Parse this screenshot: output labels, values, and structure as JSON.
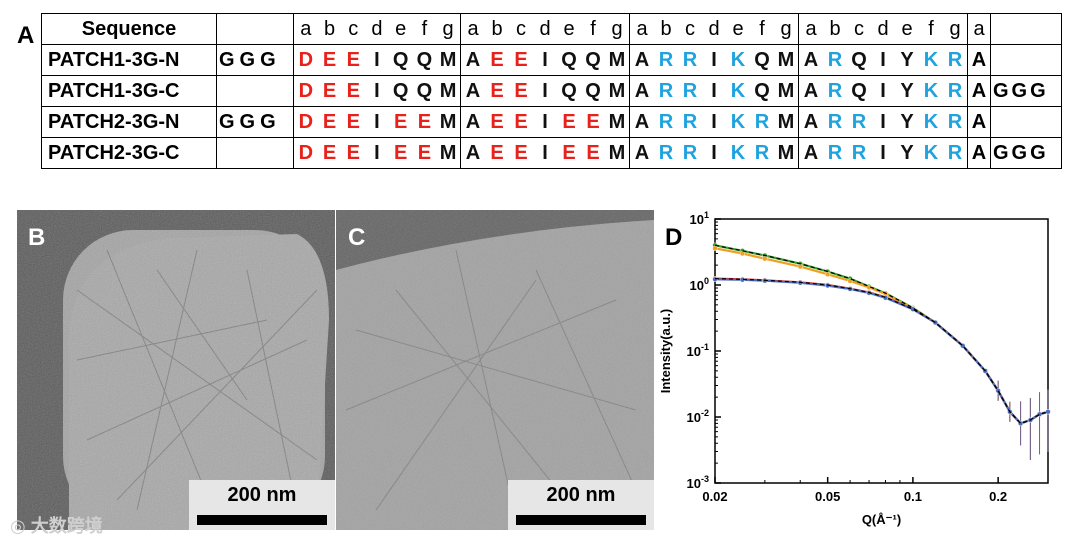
{
  "panel_labels": {
    "a": "A",
    "b": "B",
    "c": "C",
    "d": "D"
  },
  "table": {
    "header": {
      "name": "Sequence",
      "segments": [
        [
          "a",
          "b",
          "c",
          "d",
          "e",
          "f",
          "g"
        ],
        [
          "a",
          "b",
          "c",
          "d",
          "e",
          "f",
          "g"
        ],
        [
          "a",
          "b",
          "c",
          "d",
          "e",
          "f",
          "g"
        ],
        [
          "a",
          "b",
          "c",
          "d",
          "e",
          "f",
          "g"
        ],
        [
          "a"
        ],
        []
      ]
    },
    "rows": [
      {
        "name": "PATCH1-3G-N",
        "prefix": "GGG",
        "heptads": [
          "DEEIQQM",
          "AEEIQQM",
          "ARRIKQM",
          "ARQIYKR"
        ],
        "a_final": "A",
        "suffix": ""
      },
      {
        "name": "PATCH1-3G-C",
        "prefix": "",
        "heptads": [
          "DEEIQQM",
          "AEEIQQM",
          "ARRIKQM",
          "ARQIYKR"
        ],
        "a_final": "A",
        "suffix": "GGG"
      },
      {
        "name": "PATCH2-3G-N",
        "prefix": "GGG",
        "heptads": [
          "DEEIEEM",
          "AEEIEEM",
          "ARRIKRM",
          "ARRIYKR"
        ],
        "a_final": "A",
        "suffix": ""
      },
      {
        "name": "PATCH2-3G-C",
        "prefix": "",
        "heptads": [
          "DEEIEEM",
          "AEEIEEM",
          "ARRIKRM",
          "ARRIYKR"
        ],
        "a_final": "A",
        "suffix": "GGG"
      }
    ],
    "colors": {
      "acidic": "#e8211b",
      "basic": "#1fa3de",
      "neutral": "#111111"
    }
  },
  "micrographs": {
    "b": {
      "scale_label": "200 nm"
    },
    "c": {
      "scale_label": "200 nm"
    }
  },
  "chart_data": {
    "type": "scatter",
    "title": "",
    "xlabel": "Q(Å⁻¹)",
    "ylabel": "Intensity(a.u.)",
    "xscale": "log",
    "yscale": "log",
    "xlim": [
      0.02,
      0.3
    ],
    "ylim": [
      0.001,
      10
    ],
    "x_ticks": [
      {
        "value": 0.02,
        "label": "0.02"
      },
      {
        "value": 0.05,
        "label": "0.05"
      },
      {
        "value": 0.1,
        "label": "0.1"
      },
      {
        "value": 0.2,
        "label": "0.2"
      }
    ],
    "y_ticks": [
      {
        "value": 10,
        "base": "10",
        "exp": "1"
      },
      {
        "value": 1,
        "base": "10",
        "exp": "0"
      },
      {
        "value": 0.1,
        "base": "10",
        "exp": "-1"
      },
      {
        "value": 0.01,
        "base": "10",
        "exp": "-2"
      },
      {
        "value": 0.001,
        "base": "10",
        "exp": "-3"
      }
    ],
    "series": [
      {
        "name": "PATCH1-3G-N",
        "color": "#33a02c",
        "x": [
          0.02,
          0.025,
          0.03,
          0.04,
          0.05,
          0.06,
          0.07,
          0.08,
          0.1,
          0.12,
          0.15,
          0.18,
          0.2,
          0.22,
          0.24,
          0.26,
          0.28,
          0.3
        ],
        "y": [
          4.0,
          3.3,
          2.8,
          2.1,
          1.6,
          1.25,
          0.95,
          0.75,
          0.45,
          0.27,
          0.12,
          0.05,
          0.025,
          0.012,
          0.008,
          0.009,
          0.011,
          0.012
        ]
      },
      {
        "name": "PATCH1-3G-C",
        "color": "#f0a020",
        "x": [
          0.02,
          0.025,
          0.03,
          0.04,
          0.05,
          0.06,
          0.07,
          0.08,
          0.1,
          0.12,
          0.15,
          0.18,
          0.2,
          0.22,
          0.24,
          0.26,
          0.28,
          0.3
        ],
        "y": [
          3.6,
          3.0,
          2.5,
          1.9,
          1.45,
          1.15,
          0.92,
          0.73,
          0.44,
          0.27,
          0.12,
          0.05,
          0.025,
          0.012,
          0.008,
          0.009,
          0.011,
          0.012
        ]
      },
      {
        "name": "PATCH2-3G-N",
        "color": "#e8211b",
        "x": [
          0.02,
          0.025,
          0.03,
          0.04,
          0.05,
          0.06,
          0.07,
          0.08,
          0.1,
          0.12,
          0.15,
          0.18,
          0.2,
          0.22,
          0.24,
          0.26,
          0.28,
          0.3
        ],
        "y": [
          1.25,
          1.22,
          1.18,
          1.1,
          1.0,
          0.88,
          0.77,
          0.65,
          0.43,
          0.27,
          0.12,
          0.05,
          0.025,
          0.012,
          0.008,
          0.009,
          0.011,
          0.012
        ]
      },
      {
        "name": "PATCH2-3G-C",
        "color": "#4a6fc2",
        "x": [
          0.02,
          0.025,
          0.03,
          0.04,
          0.05,
          0.06,
          0.07,
          0.08,
          0.1,
          0.12,
          0.15,
          0.18,
          0.2,
          0.22,
          0.24,
          0.26,
          0.28,
          0.3
        ],
        "y": [
          1.22,
          1.2,
          1.16,
          1.08,
          0.98,
          0.87,
          0.76,
          0.64,
          0.43,
          0.27,
          0.12,
          0.05,
          0.025,
          0.012,
          0.008,
          0.009,
          0.011,
          0.012
        ]
      }
    ]
  }
}
